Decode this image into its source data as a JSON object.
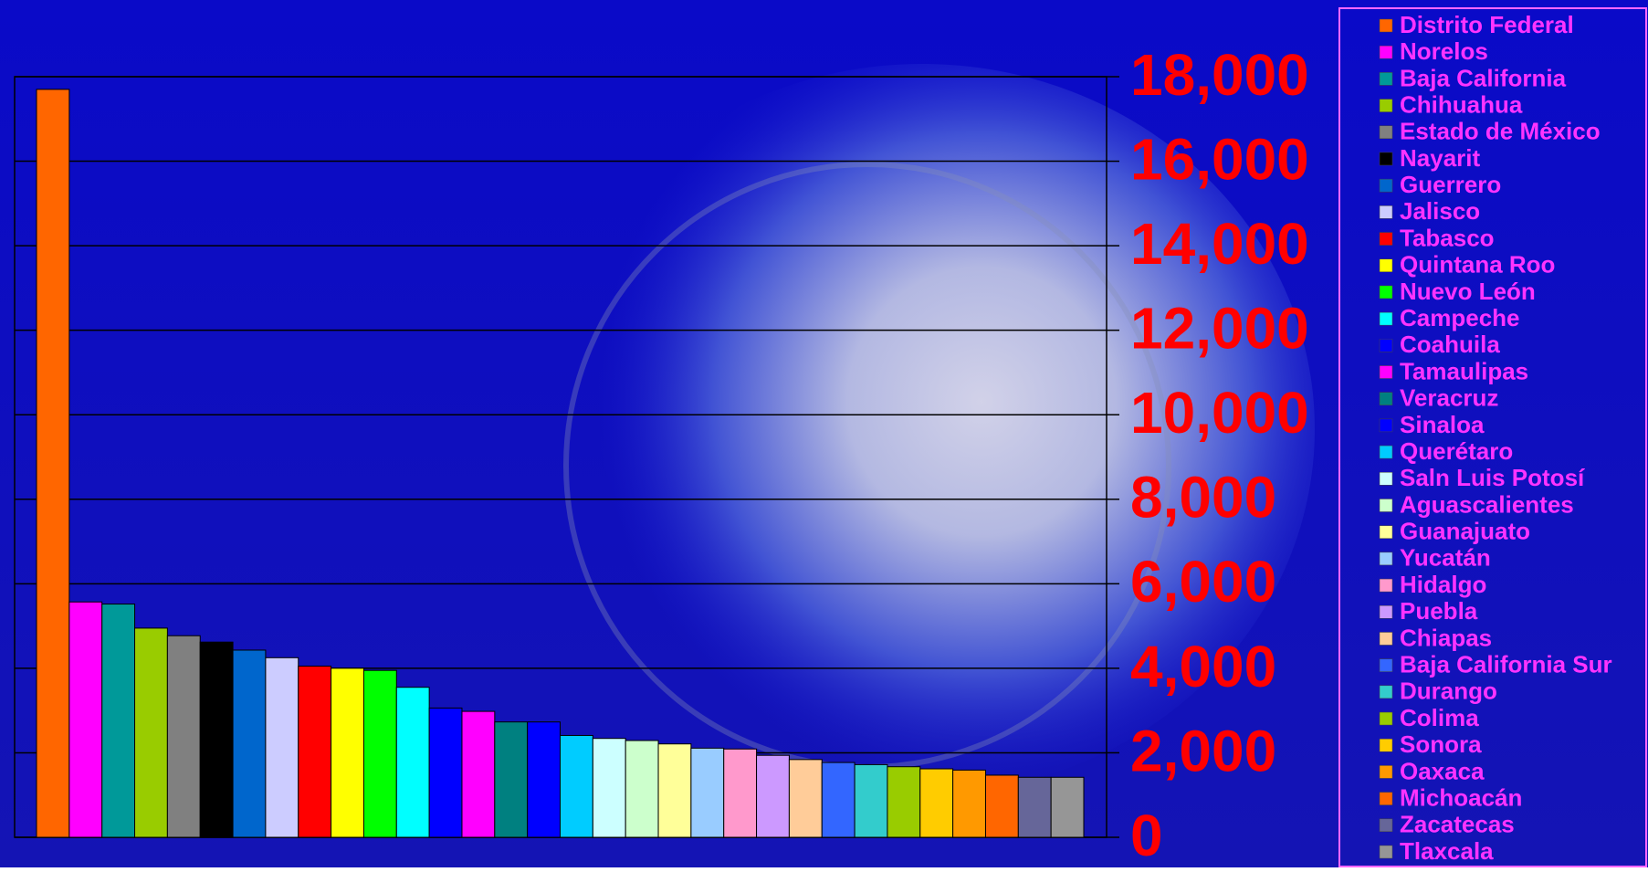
{
  "chart_data": {
    "type": "bar",
    "categories": [
      "Distrito Federal",
      "Norelos",
      "Baja California",
      "Chihuahua",
      "Estado de México",
      "Nayarit",
      "Guerrero",
      "Jalisco",
      "Tabasco",
      "Quintana Roo",
      "Nuevo León",
      "Campeche",
      "Coahuila",
      "Tamaulipas",
      "Veracruz",
      "Sinaloa",
      "Querétaro",
      "Saln Luis Potosí",
      "Aguascalientes",
      "Guanajuato",
      "Yucatán",
      "Hidalgo",
      "Puebla",
      "Chiapas",
      "Baja California Sur",
      "Durango",
      "Colima",
      "Sonora",
      "Oaxaca",
      "Michoacán",
      "Zacatecas",
      "Tlaxcala"
    ],
    "values": [
      17700,
      5570,
      5520,
      4950,
      4770,
      4620,
      4430,
      4250,
      4050,
      4000,
      3950,
      3550,
      3060,
      2980,
      2730,
      2730,
      2410,
      2340,
      2290,
      2210,
      2110,
      2090,
      1940,
      1840,
      1770,
      1720,
      1670,
      1620,
      1590,
      1470,
      1420,
      1420
    ],
    "colors": [
      "#ff6600",
      "#ff00ff",
      "#009999",
      "#99cc00",
      "#808080",
      "#000000",
      "#0066cc",
      "#ccccff",
      "#ff0000",
      "#ffff00",
      "#00ff00",
      "#00ffff",
      "#0000ff",
      "#ff00ff",
      "#008080",
      "#0000ff",
      "#00ccff",
      "#ccffff",
      "#ccffcc",
      "#ffff99",
      "#99ccff",
      "#ff99cc",
      "#cc99ff",
      "#ffcc99",
      "#3366ff",
      "#33cccc",
      "#99cc00",
      "#ffcc00",
      "#ff9900",
      "#ff6600",
      "#666699",
      "#969696"
    ],
    "ylim": [
      0,
      18000
    ],
    "yticks": [
      0,
      {
        "value": 2000,
        "label": "2,000"
      },
      {
        "value": 4000,
        "label": "4,000"
      },
      {
        "value": 6000,
        "label": "6,000"
      },
      {
        "value": 8000,
        "label": "8,000"
      },
      {
        "value": 10000,
        "label": "10,000"
      },
      {
        "value": 12000,
        "label": "12,000"
      },
      {
        "value": 14000,
        "label": "14,000"
      },
      {
        "value": 16000,
        "label": "16,000"
      },
      {
        "value": 18000,
        "label": "18,000"
      }
    ],
    "grid": true,
    "y_axis_side": "right",
    "legend": "right"
  }
}
